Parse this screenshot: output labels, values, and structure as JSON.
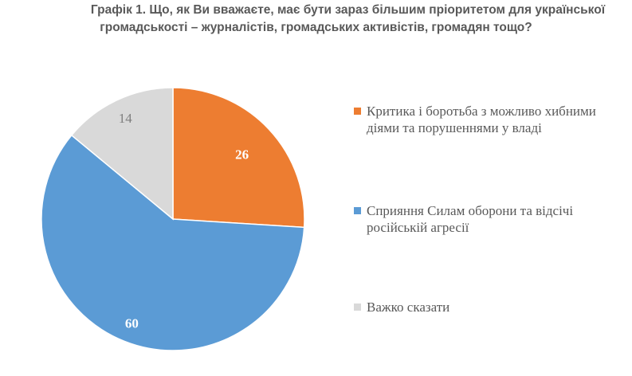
{
  "chart_data": {
    "type": "pie",
    "title": "Графік 1. Що, як Ви вважаєте, має бути зараз більшим пріоритетом для української громадськості – журналістів, громадських активістів, громадян тощо?",
    "title_lines": [
      "Графік 1. Що, як Ви вважаєте, має бути зараз більшим пріоритетом для української",
      "громадськості – журналістів, громадських активістів, громадян тощо?"
    ],
    "legend_position": "right",
    "slices": [
      {
        "label": "Критика і боротьба з можливо хибними діями та порушеннями у владі",
        "value": 26,
        "value_label": "26",
        "color": "#ED7D31"
      },
      {
        "label": "Сприяння Силам оборони та відсічі російській агресії",
        "value": 60,
        "value_label": "60",
        "color": "#5B9BD5"
      },
      {
        "label": "Важко сказати",
        "value": 14,
        "value_label": "14",
        "color": "#D9D9D9"
      }
    ]
  }
}
